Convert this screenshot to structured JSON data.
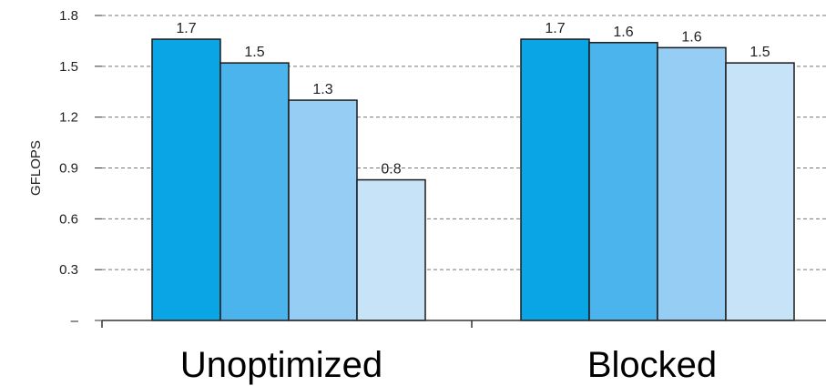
{
  "chart_data": {
    "type": "bar",
    "ylabel": "GFLOPS",
    "ylim": [
      0,
      1.8
    ],
    "yticks": [
      "–",
      "0.3",
      "0.6",
      "0.9",
      "1.2",
      "1.5",
      "1.8"
    ],
    "grid": true,
    "categories": [
      "Unoptimized",
      "Blocked"
    ],
    "bar_colors": [
      "#0aa5e4",
      "#4cb4ec",
      "#96cdf4",
      "#c7e3f7"
    ],
    "groups": [
      {
        "name": "Unoptimized",
        "values": [
          1.66,
          1.52,
          1.3,
          0.83
        ],
        "labels": [
          "1.7",
          "1.5",
          "1.3",
          "0.8"
        ]
      },
      {
        "name": "Blocked",
        "values": [
          1.66,
          1.64,
          1.61,
          1.52
        ],
        "labels": [
          "1.7",
          "1.6",
          "1.6",
          "1.5"
        ]
      }
    ]
  }
}
